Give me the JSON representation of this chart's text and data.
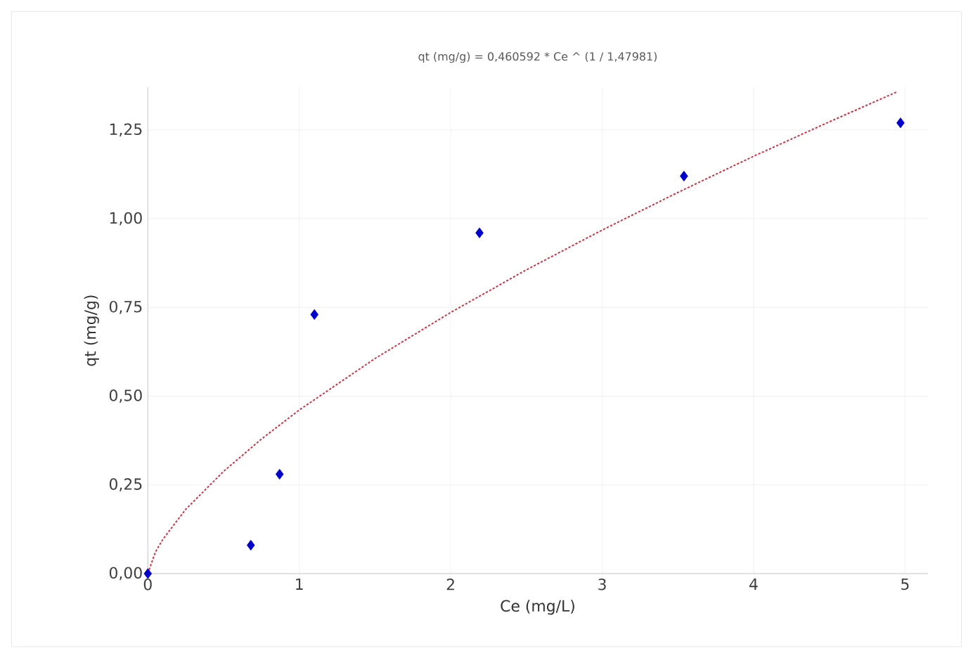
{
  "chart_data": {
    "type": "scatter",
    "title": "qt (mg/g) = 0,460592 * Ce ^ (1 / 1,47981)",
    "xlabel": "Ce (mg/L)",
    "ylabel": "qt (mg/g)",
    "xlim": [
      0,
      5.15
    ],
    "ylim": [
      0,
      1.37
    ],
    "xticks": [
      0,
      1,
      2,
      3,
      4,
      5
    ],
    "yticks": [
      {
        "value": 0,
        "label": "0,00"
      },
      {
        "value": 0.25,
        "label": "0,25"
      },
      {
        "value": 0.5,
        "label": "0,50"
      },
      {
        "value": 0.75,
        "label": "0,75"
      },
      {
        "value": 1,
        "label": "1,00"
      },
      {
        "value": 1.25,
        "label": "1,25"
      }
    ],
    "grid": true,
    "series": [
      {
        "type": "scatter",
        "color": "#0000cc",
        "marker": "diamond",
        "x": [
          0,
          0.68,
          0.87,
          1.1,
          2.19,
          3.54,
          4.97
        ],
        "values": [
          0,
          0.08,
          0.28,
          0.73,
          0.96,
          1.12,
          1.27
        ]
      },
      {
        "type": "line",
        "color": "#cc3344",
        "marker": "none",
        "line_style": "dotted",
        "x": [
          0,
          0.05,
          0.1,
          0.25,
          0.5,
          0.75,
          1,
          1.5,
          2,
          2.5,
          3,
          3.5,
          4,
          4.5,
          4.95
        ],
        "values": [
          0,
          0.061,
          0.097,
          0.181,
          0.288,
          0.379,
          0.461,
          0.606,
          0.736,
          0.856,
          0.968,
          1.074,
          1.176,
          1.273,
          1.358
        ]
      }
    ]
  }
}
